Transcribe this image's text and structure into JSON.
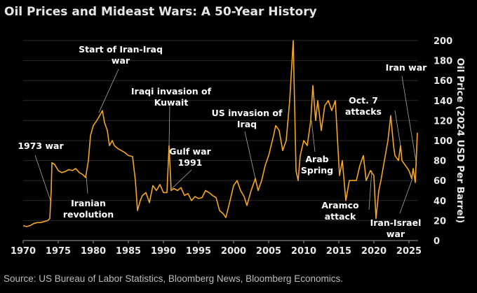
{
  "title": "Oil Prices and Mideast Wars: A 50-Year History",
  "source": "Source: US Bureau of Labor Statistics, Bloomberg News, Bloomberg Economics.",
  "colors": {
    "background": "#000000",
    "line": "#f5a623",
    "grid": "#2a2a2a",
    "axis": "#9a9a9a",
    "leader": "#a8a8a8",
    "text": "#ffffff"
  },
  "chart_data": {
    "type": "line",
    "title": "Oil Prices and Mideast Wars: A 50-Year History",
    "xlabel": "",
    "ylabel": "Oil Price (2024 USD Per Barrel)",
    "xlim": [
      1970,
      2026.5
    ],
    "ylim": [
      0,
      200
    ],
    "grid": true,
    "y_axis_side": "right",
    "x_ticks": [
      1970,
      1975,
      1980,
      1985,
      1990,
      1995,
      2000,
      2005,
      2010,
      2015,
      2020,
      2025
    ],
    "y_ticks": [
      0,
      20,
      40,
      60,
      80,
      100,
      120,
      140,
      160,
      180,
      200
    ],
    "series": [
      {
        "name": "Oil Price (2024 USD per barrel)",
        "x": [
          1970,
          1970.5,
          1971,
          1971.5,
          1972,
          1972.5,
          1973,
          1973.5,
          1973.8,
          1974.0,
          1974.1,
          1974.5,
          1975,
          1975.5,
          1976,
          1976.5,
          1977,
          1977.5,
          1978,
          1978.5,
          1978.9,
          1979.3,
          1979.6,
          1980,
          1980.5,
          1981,
          1981.3,
          1981.6,
          1982,
          1982.3,
          1982.7,
          1983,
          1983.5,
          1984,
          1984.5,
          1985,
          1985.6,
          1986.0,
          1986.3,
          1986.7,
          1987,
          1987.5,
          1988,
          1988.5,
          1989,
          1989.5,
          1990,
          1990.5,
          1990.8,
          1991.1,
          1991.5,
          1992,
          1992.5,
          1993,
          1993.5,
          1994,
          1994.5,
          1995,
          1995.5,
          1996,
          1996.5,
          1997,
          1997.5,
          1998,
          1998.5,
          1998.9,
          1999.5,
          2000,
          2000.5,
          2001,
          2001.5,
          2001.9,
          2002.5,
          2003.1,
          2003.5,
          2004,
          2004.5,
          2005,
          2005.7,
          2006,
          2006.5,
          2007,
          2007.5,
          2008,
          2008.5,
          2008.9,
          2009.2,
          2009.5,
          2010,
          2010.5,
          2011,
          2011.3,
          2011.7,
          2012,
          2012.5,
          2013,
          2013.5,
          2014,
          2014.5,
          2014.9,
          2015.1,
          2015.5,
          2016,
          2016.5,
          2017,
          2017.5,
          2018,
          2018.5,
          2018.9,
          2019.5,
          2020,
          2020.3,
          2020.7,
          2021,
          2021.5,
          2022,
          2022.4,
          2022.8,
          2023,
          2023.5,
          2023.8,
          2024,
          2024.5,
          2025,
          2025.4,
          2025.6,
          2025.9,
          2026.2
        ],
        "values": [
          15,
          14,
          15,
          17,
          18,
          18,
          19,
          20,
          22,
          50,
          78,
          76,
          70,
          68,
          69,
          71,
          70,
          72,
          68,
          66,
          63,
          80,
          105,
          115,
          120,
          126,
          130,
          118,
          110,
          95,
          100,
          95,
          92,
          90,
          88,
          85,
          84,
          60,
          30,
          40,
          45,
          48,
          38,
          55,
          50,
          56,
          48,
          48,
          95,
          50,
          52,
          50,
          53,
          45,
          47,
          40,
          44,
          42,
          43,
          50,
          48,
          45,
          43,
          30,
          27,
          23,
          40,
          55,
          60,
          50,
          44,
          35,
          50,
          62,
          50,
          60,
          75,
          85,
          105,
          115,
          110,
          90,
          100,
          140,
          200,
          70,
          60,
          85,
          100,
          95,
          120,
          155,
          120,
          140,
          110,
          135,
          140,
          130,
          140,
          90,
          65,
          80,
          40,
          60,
          60,
          60,
          75,
          85,
          60,
          70,
          65,
          22,
          50,
          60,
          80,
          100,
          125,
          95,
          85,
          80,
          95,
          80,
          75,
          70,
          62,
          72,
          58,
          108
        ]
      }
    ],
    "annotations": [
      {
        "label_lines": [
          "1973 war"
        ],
        "x": 1973.9,
        "y": 40
      },
      {
        "label_lines": [
          "Start of Iran-Iraq",
          "war"
        ],
        "x": 1980.8,
        "y": 128
      },
      {
        "label_lines": [
          "Iranian",
          "revolution"
        ],
        "x": 1979.0,
        "y": 64
      },
      {
        "label_lines": [
          "Iraqi invasion of",
          "Kuwait"
        ],
        "x": 1990.8,
        "y": 95
      },
      {
        "label_lines": [
          "Gulf war",
          "1991"
        ],
        "x": 1991.2,
        "y": 52
      },
      {
        "label_lines": [
          "US invasion of",
          "Iraq"
        ],
        "x": 2003.1,
        "y": 62
      },
      {
        "label_lines": [
          "Arab",
          "Spring"
        ],
        "x": 2011.1,
        "y": 120
      },
      {
        "label_lines": [
          "Aramco",
          "attack"
        ],
        "x": 2019.7,
        "y": 70
      },
      {
        "label_lines": [
          "Oct. 7",
          "attacks"
        ],
        "x": 2023.8,
        "y": 95
      },
      {
        "label_lines": [
          "Iran war"
        ],
        "x": 2026.1,
        "y": 75
      },
      {
        "label_lines": [
          "Iran-Israel",
          "war"
        ],
        "x": 2025.5,
        "y": 62
      }
    ]
  }
}
